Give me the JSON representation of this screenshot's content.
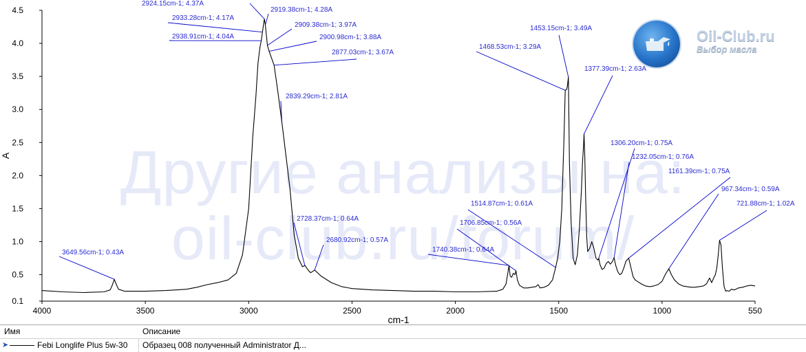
{
  "watermark": {
    "line1": "Другие анализы на:",
    "line2": "oil-club.ru/forum/"
  },
  "logo": {
    "title": "Oil-Club.ru",
    "subtitle": "Выбор масла"
  },
  "colors": {
    "spectrum": "#000000",
    "annotation": "#0000cc",
    "annotation_text": "#2a2ad0",
    "axis": "#000000"
  },
  "legend": {
    "headers": {
      "name": "Имя",
      "description": "Описание"
    },
    "rows": [
      {
        "name": "Febi Longlife Plus 5w-30",
        "description": "Образец 008 полученный Administrator Д..."
      }
    ]
  },
  "chart_data": {
    "type": "line",
    "title": "",
    "xlabel": "cm-1",
    "ylabel": "A",
    "xlim": [
      4000,
      550
    ],
    "ylim": [
      0.1,
      4.5
    ],
    "x_reversed": true,
    "grid": false,
    "x_ticks": [
      4000,
      3500,
      3000,
      2500,
      2000,
      1500,
      1000,
      550
    ],
    "y_ticks": [
      0.1,
      0.5,
      1.0,
      1.5,
      2.0,
      2.5,
      3.0,
      3.5,
      4.0,
      4.5
    ],
    "x_tick_labels": [
      "4000",
      "3500",
      "3000",
      "2500",
      "2000",
      "1500",
      "1000",
      "550"
    ],
    "y_tick_labels": [
      "0.1",
      "0.5",
      "1.0",
      "1.5",
      "2.0",
      "2.5",
      "3.0",
      "3.5",
      "4.0",
      "4.5"
    ],
    "series": [
      {
        "name": "Febi Longlife Plus 5w-30",
        "x": [
          4000,
          3900,
          3800,
          3700,
          3670,
          3660,
          3650,
          3640,
          3630,
          3600,
          3500,
          3400,
          3300,
          3250,
          3200,
          3150,
          3100,
          3060,
          3030,
          3000,
          2980,
          2965,
          2955,
          2945,
          2938.91,
          2933.28,
          2924.15,
          2919.38,
          2909.38,
          2900.98,
          2877.03,
          2860,
          2839.29,
          2800,
          2780,
          2760,
          2740,
          2728.37,
          2710,
          2700,
          2680.92,
          2650,
          2600,
          2550,
          2500,
          2400,
          2300,
          2200,
          2100,
          2000,
          1900,
          1800,
          1770,
          1755,
          1745,
          1740.38,
          1735,
          1728,
          1720,
          1712,
          1706.85,
          1700,
          1690,
          1670,
          1650,
          1630,
          1610,
          1600,
          1590,
          1570,
          1550,
          1530,
          1514.87,
          1505,
          1495,
          1485,
          1475,
          1468.53,
          1462,
          1458,
          1453.15,
          1448,
          1440,
          1430,
          1420,
          1410,
          1400,
          1390,
          1385,
          1380,
          1377.39,
          1374,
          1370,
          1365,
          1360,
          1350,
          1340,
          1330,
          1320,
          1310,
          1306.2,
          1300,
          1290,
          1280,
          1270,
          1260,
          1250,
          1240,
          1232.05,
          1225,
          1215,
          1205,
          1195,
          1185,
          1175,
          1165,
          1161.39,
          1150,
          1140,
          1130,
          1120,
          1100,
          1080,
          1060,
          1040,
          1020,
          1000,
          985,
          967.34,
          955,
          940,
          920,
          900,
          880,
          860,
          840,
          820,
          800,
          785,
          770,
          760,
          750,
          742,
          735,
          728,
          721.88,
          715,
          708,
          700,
          692,
          685,
          675,
          665,
          650,
          630,
          610,
          590,
          570,
          550
        ],
        "y": [
          0.26,
          0.24,
          0.23,
          0.24,
          0.27,
          0.34,
          0.43,
          0.35,
          0.28,
          0.25,
          0.25,
          0.26,
          0.28,
          0.31,
          0.35,
          0.38,
          0.42,
          0.52,
          0.8,
          1.5,
          2.6,
          3.2,
          3.7,
          3.95,
          4.04,
          4.17,
          4.37,
          4.28,
          3.97,
          3.88,
          3.67,
          3.3,
          2.81,
          1.8,
          1.1,
          0.75,
          0.62,
          0.64,
          0.56,
          0.53,
          0.57,
          0.48,
          0.38,
          0.32,
          0.29,
          0.27,
          0.26,
          0.25,
          0.25,
          0.24,
          0.24,
          0.25,
          0.28,
          0.36,
          0.55,
          0.64,
          0.48,
          0.46,
          0.52,
          0.5,
          0.56,
          0.42,
          0.34,
          0.3,
          0.3,
          0.31,
          0.32,
          0.35,
          0.3,
          0.31,
          0.34,
          0.42,
          0.61,
          0.75,
          1.0,
          1.5,
          2.5,
          3.29,
          3.3,
          3.35,
          3.49,
          2.2,
          1.3,
          0.75,
          0.65,
          0.8,
          1.2,
          1.8,
          2.2,
          2.45,
          2.63,
          2.3,
          1.7,
          1.1,
          0.85,
          0.9,
          1.0,
          0.9,
          0.75,
          0.72,
          0.75,
          0.65,
          0.58,
          0.6,
          0.67,
          0.7,
          0.66,
          0.7,
          0.76,
          0.65,
          0.55,
          0.5,
          0.52,
          0.6,
          0.7,
          0.74,
          0.75,
          0.6,
          0.47,
          0.42,
          0.4,
          0.36,
          0.33,
          0.32,
          0.33,
          0.35,
          0.4,
          0.5,
          0.59,
          0.5,
          0.42,
          0.36,
          0.33,
          0.32,
          0.31,
          0.31,
          0.32,
          0.33,
          0.36,
          0.45,
          0.38,
          0.45,
          0.5,
          0.6,
          0.8,
          1.02,
          0.95,
          0.6,
          0.32,
          0.25,
          0.26,
          0.25,
          0.28,
          0.27,
          0.3,
          0.31,
          0.33,
          0.34,
          0.33
        ]
      }
    ],
    "annotations": [
      {
        "text": "2924.15cm-1; 4.37A",
        "x": 2924.15,
        "y": 4.37
      },
      {
        "text": "2919.38cm-1; 4.28A",
        "x": 2919.38,
        "y": 4.28
      },
      {
        "text": "2933.28cm-1; 4.17A",
        "x": 2933.28,
        "y": 4.17
      },
      {
        "text": "2909.38cm-1; 3.97A",
        "x": 2909.38,
        "y": 3.97
      },
      {
        "text": "2938.91cm-1; 4.04A",
        "x": 2938.91,
        "y": 4.04
      },
      {
        "text": "2900.98cm-1; 3.88A",
        "x": 2900.98,
        "y": 3.88
      },
      {
        "text": "2877.03cm-1; 3.67A",
        "x": 2877.03,
        "y": 3.67
      },
      {
        "text": "2839.29cm-1; 2.81A",
        "x": 2839.29,
        "y": 2.81
      },
      {
        "text": "3649.56cm-1; 0.43A",
        "x": 3649.56,
        "y": 0.43
      },
      {
        "text": "2728.37cm-1; 0.64A",
        "x": 2728.37,
        "y": 0.64
      },
      {
        "text": "2680.92cm-1; 0.57A",
        "x": 2680.92,
        "y": 0.57
      },
      {
        "text": "1453.15cm-1; 3.49A",
        "x": 1453.15,
        "y": 3.49
      },
      {
        "text": "1468.53cm-1; 3.29A",
        "x": 1468.53,
        "y": 3.29
      },
      {
        "text": "1377.39cm-1; 2.63A",
        "x": 1377.39,
        "y": 2.63
      },
      {
        "text": "1306.20cm-1; 0.75A",
        "x": 1306.2,
        "y": 0.75
      },
      {
        "text": "1232.05cm-1; 0.76A",
        "x": 1232.05,
        "y": 0.76
      },
      {
        "text": "1161.39cm-1; 0.75A",
        "x": 1161.39,
        "y": 0.75
      },
      {
        "text": "967.34cm-1; 0.59A",
        "x": 967.34,
        "y": 0.59
      },
      {
        "text": "721.88cm-1; 1.02A",
        "x": 721.88,
        "y": 1.02
      },
      {
        "text": "1514.87cm-1; 0.61A",
        "x": 1514.87,
        "y": 0.61
      },
      {
        "text": "1706.85cm-1; 0.56A",
        "x": 1706.85,
        "y": 0.56
      },
      {
        "text": "1740.38cm-1; 0.64A",
        "x": 1740.38,
        "y": 0.64
      }
    ]
  }
}
